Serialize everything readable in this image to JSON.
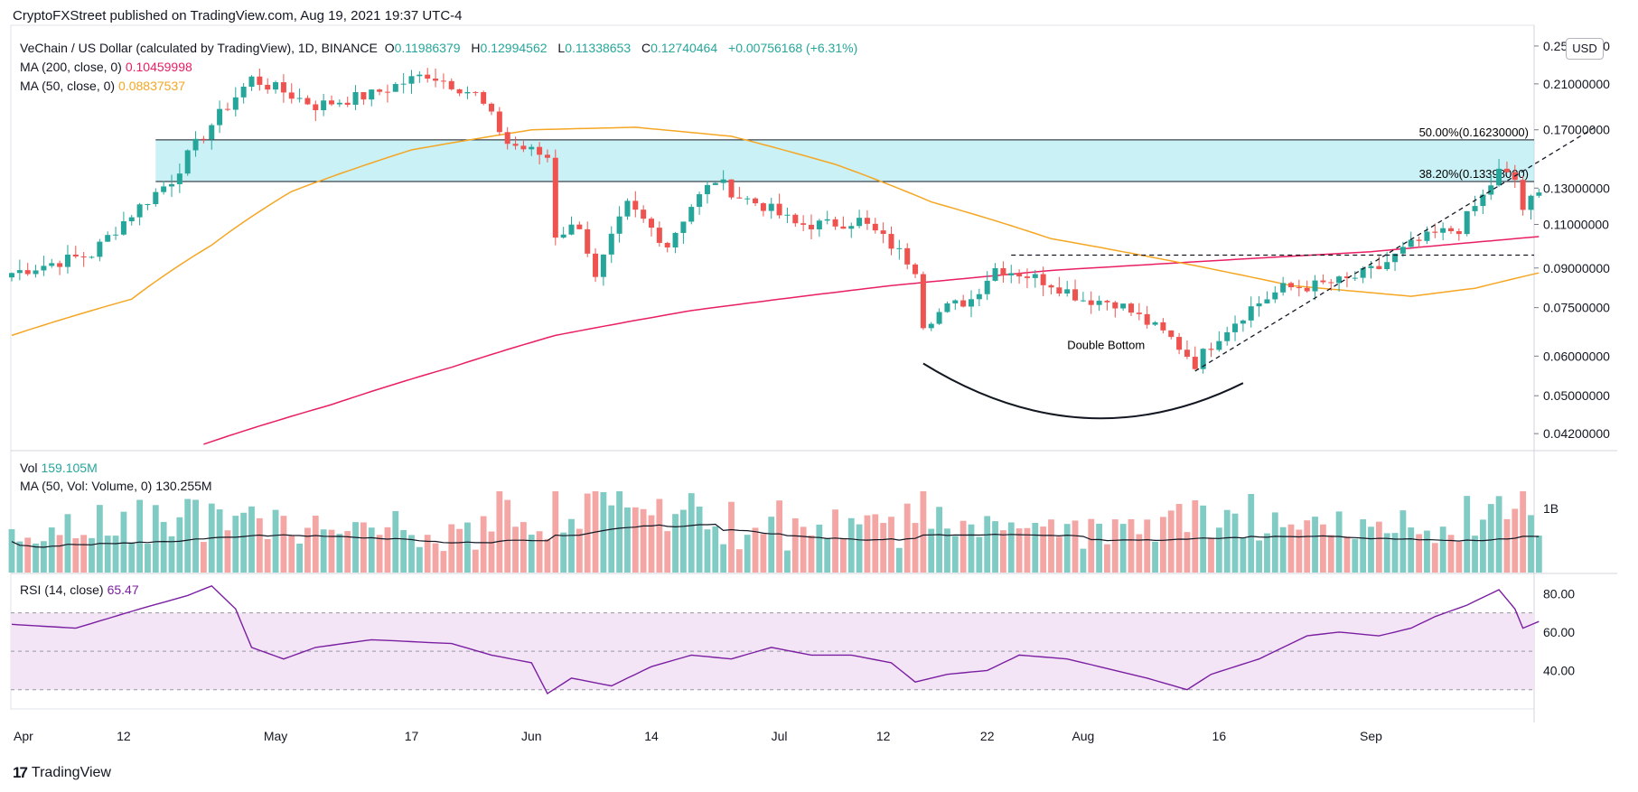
{
  "header": {
    "publisher_line": "CryptoFXStreet published on TradingView.com, Aug 19, 2021 19:37 UTC-4"
  },
  "legend": {
    "symbol": "VeChain / US Dollar (calculated by TradingView), 1D, BINANCE",
    "o_label": "O",
    "o": "0.11986379",
    "h_label": "H",
    "h": "0.12994562",
    "l_label": "L",
    "l": "0.11338653",
    "c_label": "C",
    "c": "0.12740464",
    "change": "+0.00756168 (+6.31%)",
    "ma200_label": "MA (200, close, 0)",
    "ma200_value": "0.10459998",
    "ma50_label": "MA (50, close, 0)",
    "ma50_value": "0.08837537",
    "vol_label": "Vol",
    "vol_value": "159.105M",
    "vol_ma_label": "MA (50, Vol: Volume, 0)",
    "vol_ma_value": "130.255M",
    "rsi_label": "RSI (14, close)",
    "rsi_value": "65.47"
  },
  "currency_button": "USD",
  "brand": {
    "logo": "17",
    "name": "TradingView"
  },
  "colors": {
    "up": "#26a69a",
    "down": "#ef5350",
    "ma200": "#e91e63",
    "ma50": "#f5a623",
    "zone": "#b2ebf2",
    "rsi": "#7b1fa2",
    "rsi_band": "#f3e5f5"
  },
  "chart_data": {
    "type": "candlestick",
    "price_axis": {
      "scale": "log",
      "range": [
        0.039,
        0.275
      ],
      "ticks": [
        "0.25000000",
        "0.21000000",
        "0.17000000",
        "0.13000000",
        "0.11000000",
        "0.09000000",
        "0.07500000",
        "0.06000000",
        "0.05000000",
        "0.04200000"
      ]
    },
    "x_axis": {
      "labels": [
        "Apr",
        "12",
        "May",
        "17",
        "Jun",
        "14",
        "Jul",
        "12",
        "22",
        "Aug",
        "16",
        "Sep"
      ]
    },
    "annotations": {
      "fib_50": "50.00%(0.16230000)",
      "fib_382": "38.20%(0.13398000)",
      "pattern": "Double Bottom"
    },
    "volume_axis": {
      "ticks": [
        "1B"
      ]
    },
    "rsi_axis": {
      "ticks": [
        "80.00",
        "60.00",
        "40.00"
      ],
      "range": [
        20,
        90
      ],
      "band": [
        30,
        70
      ]
    },
    "anchors_close": [
      [
        0,
        0.088
      ],
      [
        10,
        0.096
      ],
      [
        20,
        0.135
      ],
      [
        27,
        0.19
      ],
      [
        30,
        0.215
      ],
      [
        38,
        0.19
      ],
      [
        45,
        0.2
      ],
      [
        52,
        0.22
      ],
      [
        58,
        0.2
      ],
      [
        62,
        0.16
      ],
      [
        67,
        0.15
      ],
      [
        68,
        0.105
      ],
      [
        71,
        0.11
      ],
      [
        73,
        0.085
      ],
      [
        77,
        0.12
      ],
      [
        82,
        0.1
      ],
      [
        85,
        0.12
      ],
      [
        88,
        0.135
      ],
      [
        91,
        0.125
      ],
      [
        94,
        0.12
      ],
      [
        98,
        0.11
      ],
      [
        102,
        0.11
      ],
      [
        106,
        0.112
      ],
      [
        110,
        0.1
      ],
      [
        113,
        0.09
      ],
      [
        114,
        0.07
      ],
      [
        117,
        0.075
      ],
      [
        120,
        0.078
      ],
      [
        123,
        0.09
      ],
      [
        126,
        0.088
      ],
      [
        130,
        0.084
      ],
      [
        134,
        0.078
      ],
      [
        138,
        0.077
      ],
      [
        142,
        0.07
      ],
      [
        145,
        0.065
      ],
      [
        148,
        0.058
      ],
      [
        151,
        0.066
      ],
      [
        155,
        0.075
      ],
      [
        159,
        0.082
      ],
      [
        163,
        0.083
      ],
      [
        167,
        0.085
      ],
      [
        171,
        0.09
      ],
      [
        175,
        0.1
      ],
      [
        178,
        0.105
      ],
      [
        181,
        0.108
      ],
      [
        184,
        0.125
      ],
      [
        186,
        0.14
      ],
      [
        188,
        0.135
      ],
      [
        189,
        0.118
      ],
      [
        191,
        0.1274
      ]
    ],
    "anchors_ma200": [
      [
        24,
        0.04
      ],
      [
        40,
        0.048
      ],
      [
        55,
        0.057
      ],
      [
        68,
        0.066
      ],
      [
        85,
        0.074
      ],
      [
        110,
        0.083
      ],
      [
        130,
        0.089
      ],
      [
        150,
        0.093
      ],
      [
        170,
        0.097
      ],
      [
        191,
        0.104
      ]
    ],
    "anchors_ma50": [
      [
        0,
        0.066
      ],
      [
        15,
        0.078
      ],
      [
        25,
        0.1
      ],
      [
        35,
        0.128
      ],
      [
        50,
        0.155
      ],
      [
        65,
        0.17
      ],
      [
        78,
        0.172
      ],
      [
        90,
        0.165
      ],
      [
        103,
        0.145
      ],
      [
        115,
        0.122
      ],
      [
        130,
        0.103
      ],
      [
        145,
        0.093
      ],
      [
        160,
        0.083
      ],
      [
        175,
        0.079
      ],
      [
        183,
        0.082
      ],
      [
        191,
        0.088
      ]
    ],
    "anchors_rsi": [
      [
        0,
        64
      ],
      [
        8,
        62
      ],
      [
        16,
        72
      ],
      [
        22,
        79
      ],
      [
        25,
        84
      ],
      [
        28,
        72
      ],
      [
        30,
        52
      ],
      [
        34,
        46
      ],
      [
        38,
        52
      ],
      [
        45,
        56
      ],
      [
        55,
        54
      ],
      [
        60,
        48
      ],
      [
        65,
        44
      ],
      [
        67,
        28
      ],
      [
        70,
        36
      ],
      [
        75,
        32
      ],
      [
        80,
        42
      ],
      [
        85,
        48
      ],
      [
        90,
        46
      ],
      [
        95,
        52
      ],
      [
        100,
        48
      ],
      [
        105,
        48
      ],
      [
        110,
        44
      ],
      [
        113,
        34
      ],
      [
        117,
        38
      ],
      [
        122,
        40
      ],
      [
        126,
        48
      ],
      [
        132,
        46
      ],
      [
        138,
        40
      ],
      [
        142,
        36
      ],
      [
        147,
        30
      ],
      [
        150,
        38
      ],
      [
        156,
        46
      ],
      [
        162,
        58
      ],
      [
        166,
        60
      ],
      [
        171,
        58
      ],
      [
        175,
        62
      ],
      [
        178,
        68
      ],
      [
        182,
        74
      ],
      [
        186,
        82
      ],
      [
        188,
        72
      ],
      [
        189,
        62
      ],
      [
        191,
        65.47
      ]
    ]
  }
}
